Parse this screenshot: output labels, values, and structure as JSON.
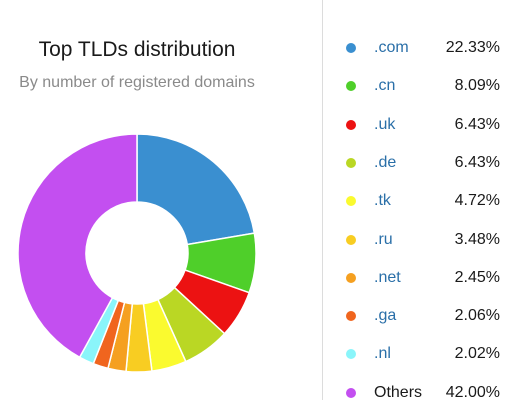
{
  "chart_data": {
    "type": "pie",
    "title": "Top TLDs distribution",
    "subtitle": "By number of registered domains",
    "legend_position": "right",
    "slices": [
      {
        "label": ".com",
        "value": 22.33,
        "display": "22.33%",
        "color": "#3a8fd0"
      },
      {
        "label": ".cn",
        "value": 8.09,
        "display": "8.09%",
        "color": "#4fcf2a"
      },
      {
        "label": ".uk",
        "value": 6.43,
        "display": "6.43%",
        "color": "#ec1212"
      },
      {
        "label": ".de",
        "value": 6.43,
        "display": "6.43%",
        "color": "#bad724"
      },
      {
        "label": ".tk",
        "value": 4.72,
        "display": "4.72%",
        "color": "#fafa2f"
      },
      {
        "label": ".ru",
        "value": 3.48,
        "display": "3.48%",
        "color": "#f8cd22"
      },
      {
        "label": ".net",
        "value": 2.45,
        "display": "2.45%",
        "color": "#f5a020"
      },
      {
        "label": ".ga",
        "value": 2.06,
        "display": "2.06%",
        "color": "#f0651e"
      },
      {
        "label": ".nl",
        "value": 2.02,
        "display": "2.02%",
        "color": "#8af5fa"
      },
      {
        "label": "Others",
        "value": 42.0,
        "display": "42.00%",
        "color": "#c34ff0"
      }
    ]
  }
}
